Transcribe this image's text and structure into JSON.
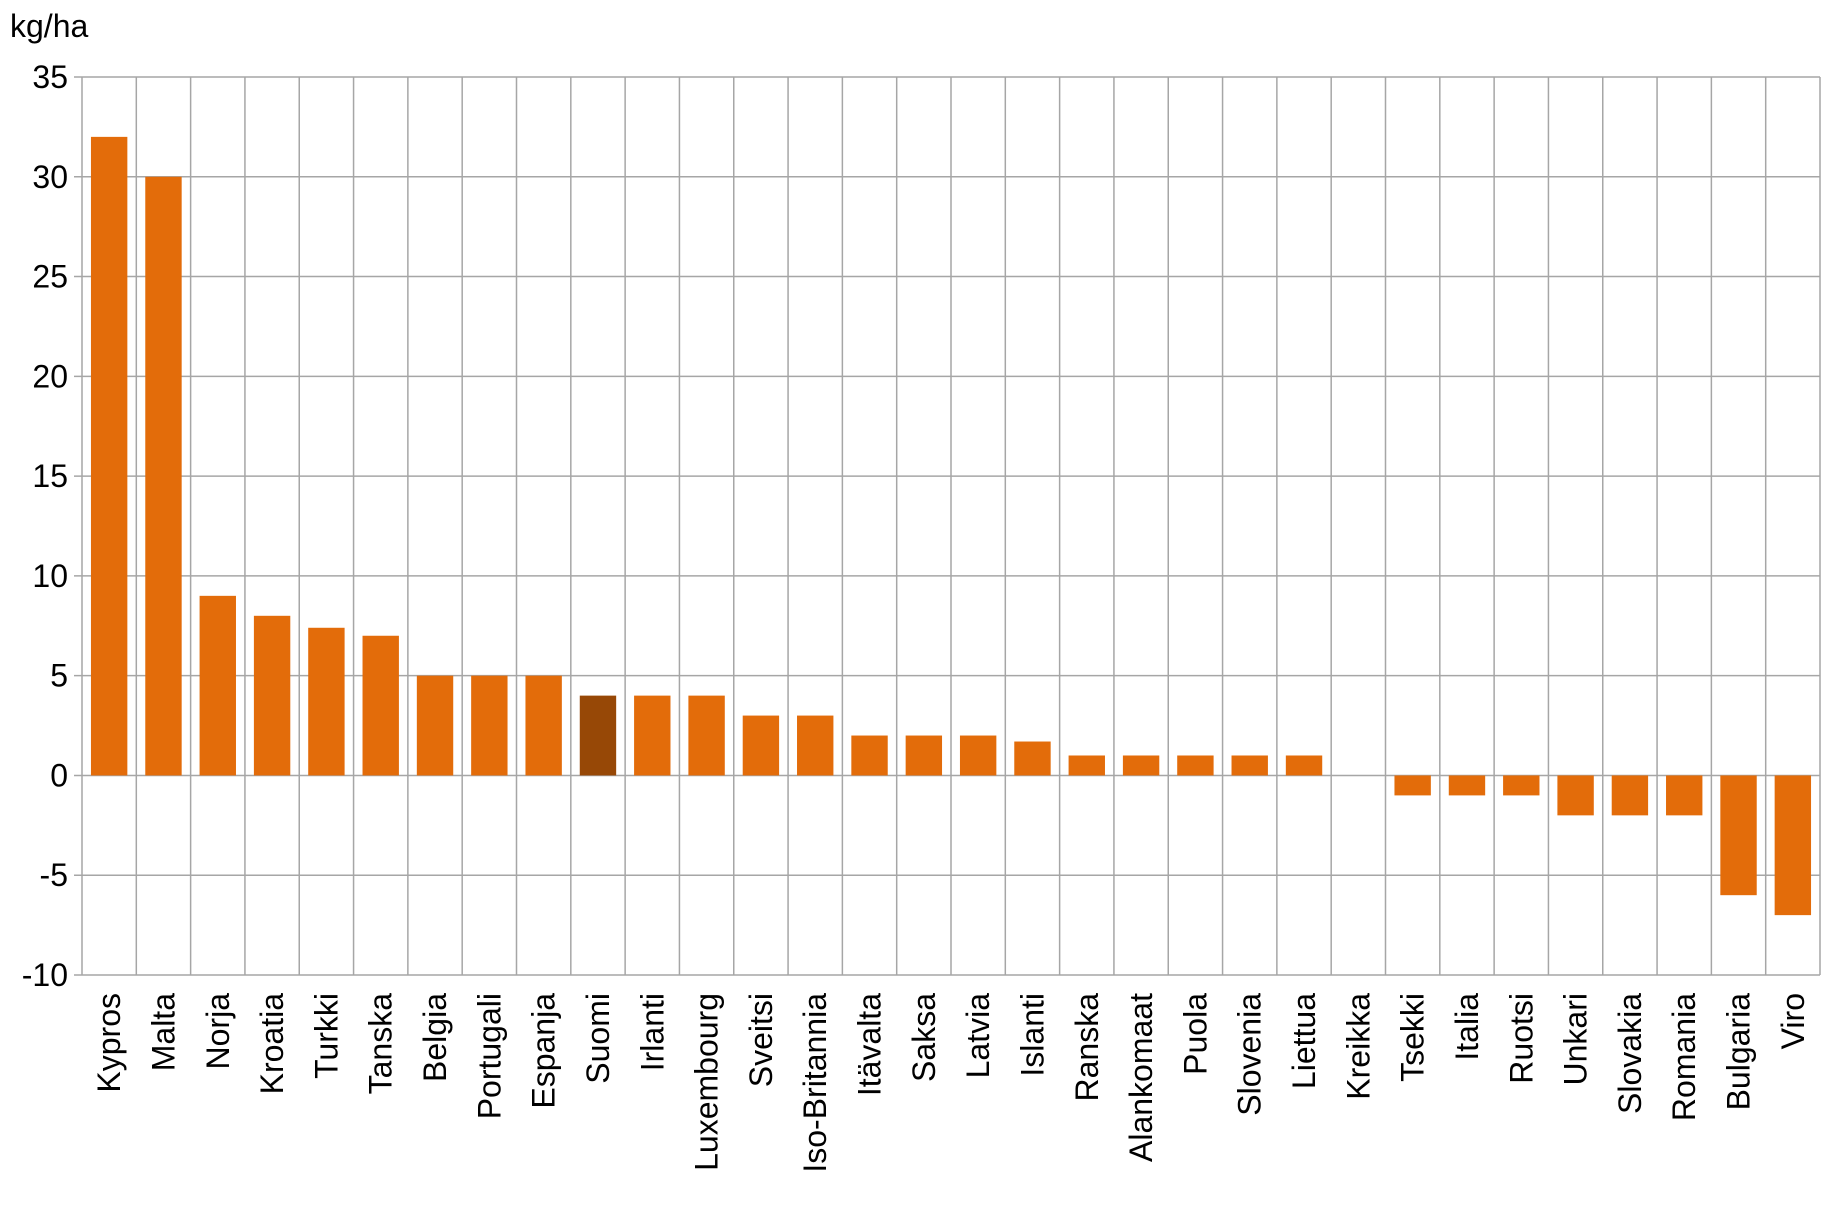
{
  "chart_data": {
    "type": "bar",
    "ylabel": "kg/ha",
    "ylim": [
      -10,
      35
    ],
    "yticks": [
      "35",
      "30",
      "25",
      "20",
      "15",
      "10",
      "5",
      "0",
      "-5",
      "-10"
    ],
    "grid": true,
    "legend": "none",
    "colors": {
      "default": "#E36C0A",
      "highlight": "#974806",
      "grid": "#A6A6A6"
    },
    "highlight_category": "Suomi",
    "categories": [
      "Kypros",
      "Malta",
      "Norja",
      "Kroatia",
      "Turkki",
      "Tanska",
      "Belgia",
      "Portugali",
      "Espanja",
      "Suomi",
      "Irlanti",
      "Luxembourg",
      "Sveitsi",
      "Iso-Britannia",
      "Itävalta",
      "Saksa",
      "Latvia",
      "Islanti",
      "Ranska",
      "Alankomaat",
      "Puola",
      "Slovenia",
      "Liettua",
      "Kreikka",
      "Tsekki",
      "Italia",
      "Ruotsi",
      "Unkari",
      "Slovakia",
      "Romania",
      "Bulgaria",
      "Viro"
    ],
    "values": [
      32,
      30,
      9,
      8,
      7.4,
      7,
      5,
      5,
      5,
      4,
      4,
      4,
      3,
      3,
      2,
      2,
      2,
      1.7,
      1,
      1,
      1,
      1,
      1,
      0,
      -1,
      -1,
      -1,
      -2,
      -2,
      -2,
      -6,
      -7
    ]
  }
}
